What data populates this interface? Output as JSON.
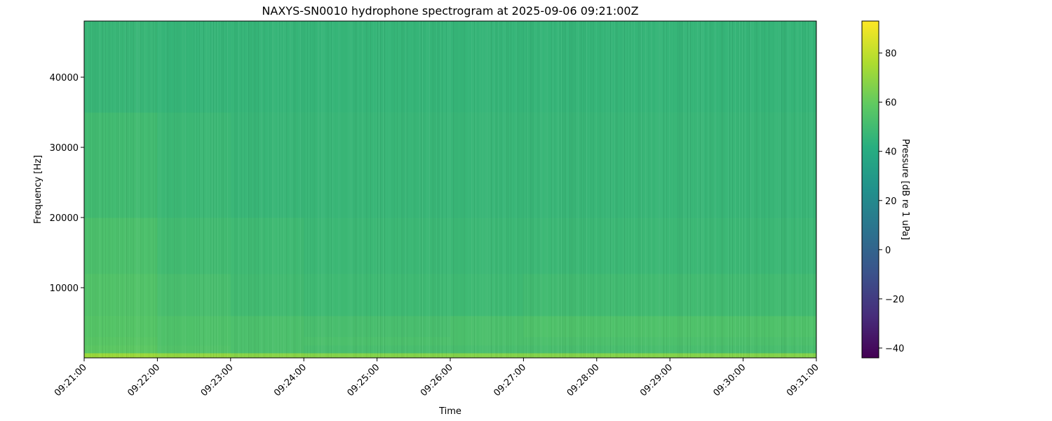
{
  "chart_data": {
    "type": "heatmap",
    "title": "NAXYS-SN0010 hydrophone spectrogram at 2025-09-06 09:21:00Z",
    "xlabel": "Time",
    "ylabel": "Frequency [Hz]",
    "colorbar_label": "Pressure [dB re 1 uPa]",
    "colormap": "viridis",
    "xlim": [
      "09:21:00",
      "09:31:00"
    ],
    "ylim": [
      0,
      48000
    ],
    "clim": [
      -44,
      93
    ],
    "x_ticks": [
      "09:21:00",
      "09:22:00",
      "09:23:00",
      "09:24:00",
      "09:25:00",
      "09:26:00",
      "09:27:00",
      "09:28:00",
      "09:29:00",
      "09:30:00",
      "09:31:00"
    ],
    "y_ticks": [
      10000,
      20000,
      30000,
      40000
    ],
    "colorbar_ticks": [
      -40,
      -20,
      0,
      20,
      40,
      60,
      80
    ],
    "time_bins": [
      "09:21:00",
      "09:22:00",
      "09:23:00",
      "09:24:00",
      "09:25:00",
      "09:26:00",
      "09:27:00",
      "09:28:00",
      "09:29:00",
      "09:30:00",
      "09:31:00"
    ],
    "freq_bins_hz": [
      0,
      700,
      1800,
      3000,
      6000,
      12000,
      20000,
      35000,
      48000
    ],
    "z_db": [
      [
        72,
        70,
        68,
        67,
        67,
        67,
        67,
        67,
        67,
        67
      ],
      [
        58,
        55,
        53,
        52,
        52,
        52,
        52,
        52,
        52,
        52
      ],
      [
        57,
        54,
        53,
        53,
        53,
        53,
        53,
        53,
        53,
        53
      ],
      [
        56,
        54,
        53,
        52,
        52,
        53,
        54,
        54,
        54,
        54
      ],
      [
        55,
        52,
        50,
        49,
        49,
        49,
        50,
        50,
        50,
        50
      ],
      [
        53,
        50,
        49,
        48,
        48,
        48,
        48,
        48,
        48,
        48
      ],
      [
        50,
        48,
        47,
        47,
        47,
        47,
        47,
        47,
        47,
        47
      ],
      [
        47,
        46,
        46,
        46,
        46,
        46,
        46,
        46,
        46,
        46
      ]
    ],
    "grid": false
  }
}
